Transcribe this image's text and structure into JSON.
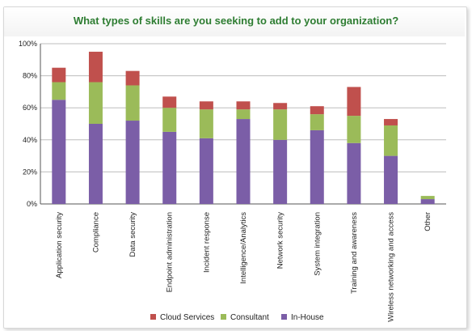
{
  "chart_data": {
    "type": "bar",
    "stacked": true,
    "title": "What types of skills are you seeking to add to your organization?",
    "xlabel": "",
    "ylabel": "",
    "ylim": [
      0,
      100
    ],
    "yticks": [
      "0%",
      "20%",
      "40%",
      "60%",
      "80%",
      "100%"
    ],
    "grid": true,
    "legend_position": "bottom",
    "categories": [
      "Application security",
      "Compliance",
      "Data security",
      "Endpoint administration",
      "Incident response",
      "Intelligence/Analytics",
      "Network security",
      "System integration",
      "Training and awareness",
      "Wireless networking and access",
      "Other"
    ],
    "series": [
      {
        "name": "In-House",
        "color": "#7b5ea7",
        "values": [
          65,
          50,
          52,
          45,
          41,
          53,
          40,
          46,
          38,
          30,
          3
        ]
      },
      {
        "name": "Consultant",
        "color": "#9bbb59",
        "values": [
          11,
          26,
          22,
          15,
          18,
          6,
          19,
          10,
          17,
          19,
          2
        ]
      },
      {
        "name": "Cloud Services",
        "color": "#c0504d",
        "values": [
          9,
          19,
          9,
          7,
          5,
          5,
          4,
          5,
          18,
          4,
          0
        ]
      }
    ],
    "legend_order": [
      "Cloud Services",
      "Consultant",
      "In-House"
    ]
  }
}
